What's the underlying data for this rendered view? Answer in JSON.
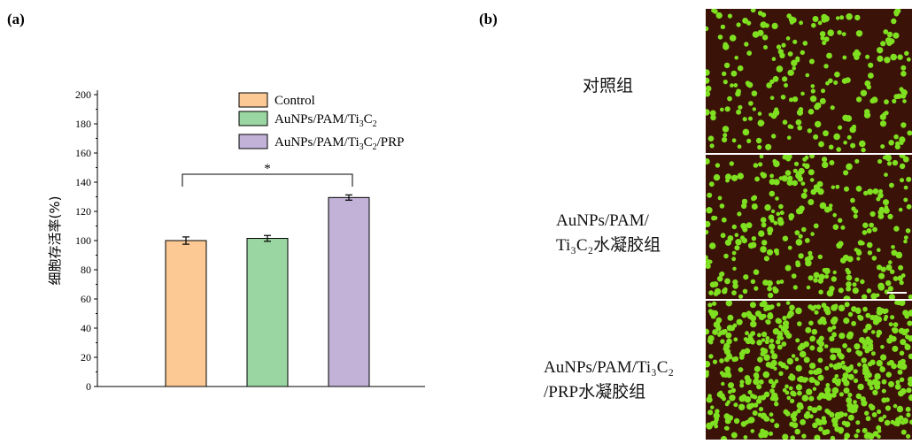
{
  "panels": {
    "a_label": "(a)",
    "b_label": "(b)"
  },
  "chart_data": {
    "type": "bar",
    "categories": [
      "Control",
      "AuNPs/PAM/Ti3C2",
      "AuNPs/PAM/Ti3C2/PRP"
    ],
    "values": [
      100,
      101.5,
      129.5
    ],
    "errors": [
      2.5,
      2.0,
      1.8
    ],
    "colors": [
      "#fcc893",
      "#9ad6a2",
      "#c2b2d8"
    ],
    "ylabel": "细胞存活率(%)",
    "ylim": [
      0,
      200
    ],
    "yticks": [
      0,
      20,
      40,
      60,
      80,
      100,
      120,
      140,
      160,
      180,
      200
    ],
    "legend": [
      "Control",
      "AuNPs/PAM/Ti3C2",
      "AuNPs/PAM/Ti3C2/PRP"
    ],
    "legend_position": "top-center",
    "significance": {
      "from": 0,
      "to": 2,
      "label": "*"
    },
    "grid": false
  },
  "panel_b": {
    "groups": [
      {
        "line1": "对照组",
        "line2": ""
      },
      {
        "line1": "AuNPs/PAM/",
        "line2": "Ti₃C₂水凝胶组"
      },
      {
        "line1": "AuNPs/PAM/Ti₃C₂",
        "line2": "/PRP水凝胶组"
      }
    ],
    "photo_colors": {
      "background": "#3b1208",
      "cell": "#7ee020"
    }
  }
}
